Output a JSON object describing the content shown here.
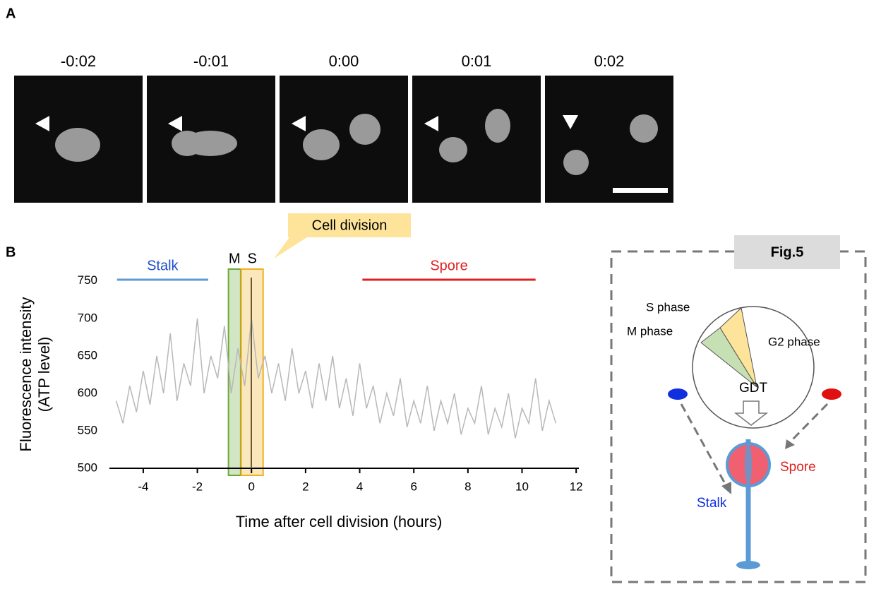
{
  "panel_a": {
    "label": "A",
    "frames": [
      "-0:02",
      "-0:01",
      "0:00",
      "0:01",
      "0:02"
    ]
  },
  "panel_b_label": "B",
  "callout": "Cell division",
  "chart_data": {
    "type": "line",
    "xlabel": "Time after cell division (hours)",
    "ylabel": [
      "Fluorescence intensity",
      "(ATP level)"
    ],
    "x": [
      -5,
      -4.75,
      -4.5,
      -4.25,
      -4,
      -3.75,
      -3.5,
      -3.25,
      -3,
      -2.75,
      -2.5,
      -2.25,
      -2,
      -1.75,
      -1.5,
      -1.25,
      -1,
      -0.75,
      -0.5,
      -0.25,
      0,
      0.25,
      0.5,
      0.75,
      1,
      1.25,
      1.5,
      1.75,
      2,
      2.25,
      2.5,
      2.75,
      3,
      3.25,
      3.5,
      3.75,
      4,
      4.25,
      4.5,
      4.75,
      5,
      5.25,
      5.5,
      5.75,
      6,
      6.25,
      6.5,
      6.75,
      7,
      7.25,
      7.5,
      7.75,
      8,
      8.25,
      8.5,
      8.75,
      9,
      9.25,
      9.5,
      9.75,
      10,
      10.25,
      10.5,
      10.75,
      11,
      11.25
    ],
    "series": [
      {
        "color": "#b8b8b8",
        "values": [
          590,
          560,
          610,
          575,
          630,
          585,
          650,
          600,
          680,
          590,
          640,
          610,
          700,
          600,
          650,
          620,
          690,
          600,
          660,
          610,
          700,
          620,
          650,
          600,
          640,
          590,
          660,
          600,
          630,
          580,
          640,
          590,
          650,
          580,
          620,
          570,
          640,
          580,
          610,
          560,
          600,
          570,
          620,
          555,
          590,
          560,
          610,
          550,
          590,
          560,
          600,
          545,
          580,
          560,
          610,
          545,
          580,
          555,
          600,
          540,
          580,
          560,
          620,
          550,
          590,
          560
        ]
      }
    ],
    "xlim": [
      -5.25,
      12.1
    ],
    "ylim": [
      500,
      762
    ],
    "xticks": [
      -4,
      -2,
      0,
      2,
      4,
      6,
      8,
      10,
      12
    ],
    "yticks": [
      500,
      550,
      600,
      650,
      700,
      750
    ],
    "regions": [
      {
        "label": "M",
        "start": -0.85,
        "end": -0.4,
        "color": "#6aaa3a"
      },
      {
        "label": "S",
        "start": -0.38,
        "end": 0.43,
        "color": "#f0b020"
      }
    ],
    "phases": [
      {
        "label": "Stalk",
        "start": -4.97,
        "end": -1.6,
        "color": "#5b9bd5",
        "text_color": "#1f4fd0"
      },
      {
        "label": "Spore",
        "start": 4.1,
        "end": 10.5,
        "color": "#e02020",
        "text_color": "#e02020"
      }
    ]
  },
  "fig5": {
    "title": "Fig.5",
    "s_phase": "S phase",
    "m_phase": "M phase",
    "g2_phase": "G2 phase",
    "gdt": "GDT",
    "spore": "Spore",
    "stalk": "Stalk"
  }
}
